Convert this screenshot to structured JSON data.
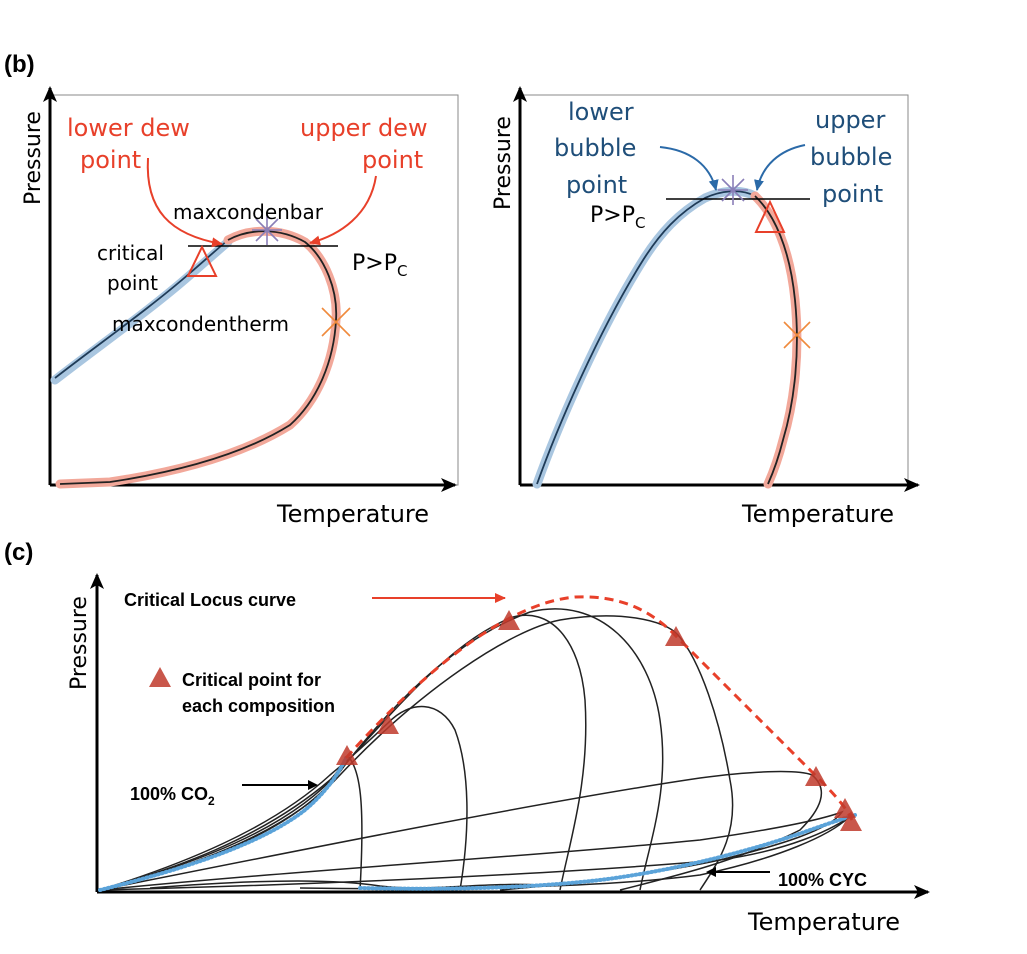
{
  "colors": {
    "dew": "#e8402a",
    "bubble": "#1f4e79",
    "blue_curve": "#5ba3d9",
    "critical": "#c0392b",
    "axis": "#000000",
    "pink_band": "#f2a89a",
    "blue_band": "#a9c6e0",
    "star": "#8a7fb8",
    "cross": "#f08a3c"
  },
  "panel_b": {
    "label": "(b)",
    "left": {
      "y_axis": "Pressure",
      "x_axis": "Temperature",
      "lower_dew_1": "lower dew",
      "lower_dew_2": "point",
      "upper_dew_1": "upper dew",
      "upper_dew_2": "point",
      "maxcondenbar": "maxcondenbar",
      "critical_1": "critical",
      "critical_2": "point",
      "maxcondentherm": "maxcondentherm",
      "p_gt_pc_main": "P>P",
      "p_gt_pc_sub": "C"
    },
    "right": {
      "y_axis": "Pressure",
      "x_axis": "Temperature",
      "lower_bubble_1": "lower",
      "lower_bubble_2": "bubble",
      "lower_bubble_3": "point",
      "upper_bubble_1": "upper",
      "upper_bubble_2": "bubble",
      "upper_bubble_3": "point",
      "p_gt_pc_main": "P>P",
      "p_gt_pc_sub": "C"
    }
  },
  "panel_c": {
    "label": "(c)",
    "y_axis": "Pressure",
    "x_axis": "Temperature",
    "critical_locus": "Critical Locus curve",
    "legend_1": "Critical point for",
    "legend_2": "each composition",
    "co2_main": "100% CO",
    "co2_sub": "2",
    "cyc": "100% CYC"
  }
}
